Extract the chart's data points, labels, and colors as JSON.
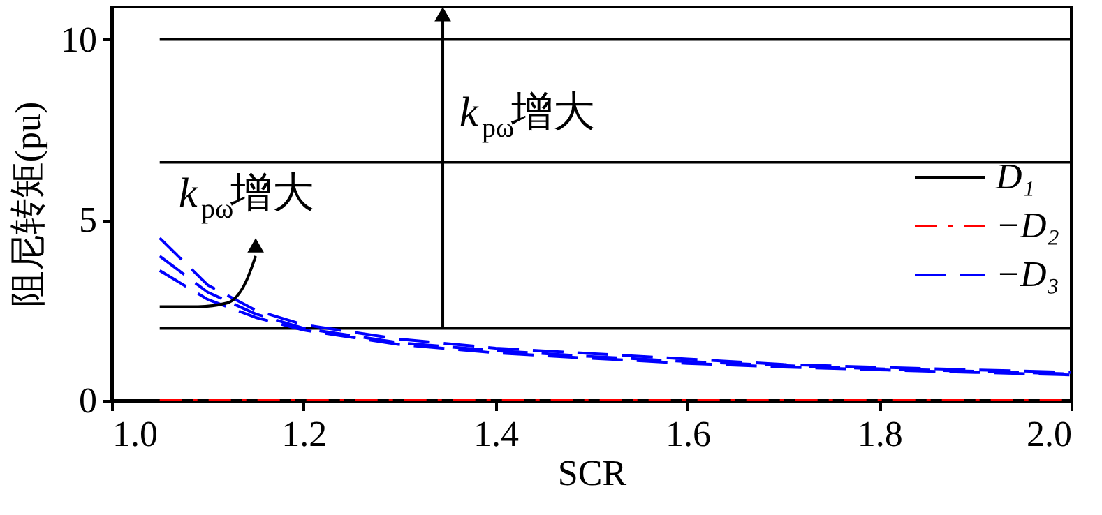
{
  "chart_data": {
    "type": "line",
    "xlabel": "SCR",
    "ylabel": "阻尼转矩(pu)",
    "xlim": [
      1.0,
      2.0
    ],
    "xticks": [
      {
        "value": 1.0,
        "label": "1.0"
      },
      {
        "value": 1.2,
        "label": "1.2"
      },
      {
        "value": 1.4,
        "label": "1.4"
      },
      {
        "value": 1.6,
        "label": "1.6"
      },
      {
        "value": 1.8,
        "label": "1.8"
      },
      {
        "value": 2.0,
        "label": "2.0"
      }
    ],
    "ylim": [
      0,
      10.9
    ],
    "yticks": [
      0,
      5,
      10
    ],
    "legend": "right",
    "grid": false,
    "series": [
      {
        "name": "D₁",
        "color": "#000000",
        "line_style": "solid",
        "x": [
          1.05,
          2.0
        ],
        "values": [
          2.0,
          2.0
        ]
      },
      {
        "color": "#000000",
        "line_style": "solid",
        "x": [
          1.05,
          2.0
        ],
        "values": [
          6.6,
          6.6
        ]
      },
      {
        "color": "#000000",
        "line_style": "solid",
        "x": [
          1.05,
          2.0
        ],
        "values": [
          10.0,
          10.0
        ]
      },
      {
        "name": "−D₂",
        "color": "#ff0000",
        "line_style": "dashdot",
        "x": [
          1.05,
          2.0
        ],
        "values": [
          0.0,
          0.0
        ]
      },
      {
        "name": "−D₃",
        "color": "#0000ff",
        "line_style": "dashed",
        "x": [
          1.05,
          1.1,
          1.15,
          1.2,
          1.3,
          1.4,
          1.5,
          1.6,
          1.7,
          1.8,
          1.9,
          2.0
        ],
        "values": [
          4.5,
          3.2,
          2.5,
          2.1,
          1.7,
          1.45,
          1.3,
          1.15,
          1.0,
          0.92,
          0.85,
          0.78
        ]
      },
      {
        "color": "#0000ff",
        "line_style": "dashed",
        "x": [
          1.05,
          1.1,
          1.15,
          1.2,
          1.3,
          1.4,
          1.5,
          1.6,
          1.7,
          1.8,
          1.9,
          2.0
        ],
        "values": [
          4.0,
          3.0,
          2.4,
          2.0,
          1.6,
          1.38,
          1.22,
          1.08,
          0.97,
          0.88,
          0.81,
          0.74
        ]
      },
      {
        "color": "#0000ff",
        "line_style": "dashed",
        "x": [
          1.05,
          1.1,
          1.15,
          1.2,
          1.3,
          1.4,
          1.5,
          1.6,
          1.7,
          1.8,
          1.9,
          2.0
        ],
        "values": [
          3.6,
          2.8,
          2.3,
          1.95,
          1.55,
          1.32,
          1.17,
          1.03,
          0.93,
          0.85,
          0.78,
          0.71
        ]
      }
    ],
    "annotations": [
      {
        "text": "k$_{pω}$增大",
        "x": 1.345,
        "y": 10.7
      },
      {
        "text": "k$_{pω}$增大",
        "x": 1.15,
        "y": 4.3
      }
    ]
  }
}
